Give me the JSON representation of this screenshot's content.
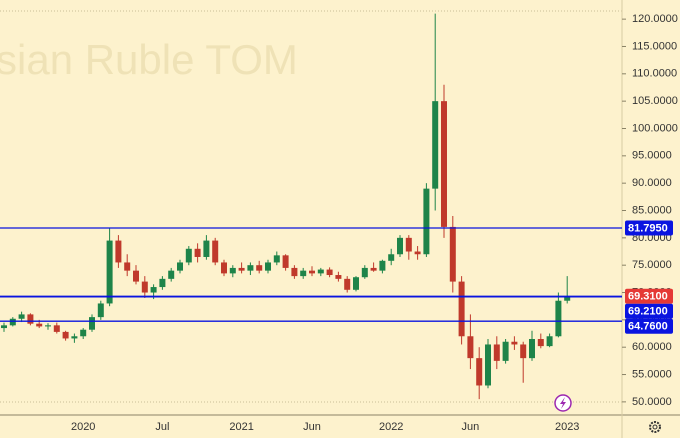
{
  "chart_data": {
    "type": "candlestick",
    "title": "sian Ruble TOM",
    "categories": [
      null,
      null,
      null,
      null,
      null,
      null,
      null,
      null,
      null,
      "2020",
      null,
      null,
      null,
      null,
      null,
      null,
      null,
      null,
      "Jul",
      null,
      null,
      null,
      null,
      null,
      null,
      null,
      null,
      "2021",
      null,
      null,
      null,
      null,
      null,
      null,
      null,
      "Jun",
      null,
      null,
      null,
      null,
      null,
      null,
      null,
      null,
      "2022",
      null,
      null,
      null,
      null,
      null,
      null,
      null,
      null,
      "Jun",
      null,
      null,
      null,
      null,
      null,
      null,
      null,
      null,
      null,
      null,
      "2023"
    ],
    "open": [
      63.5,
      64.0,
      65.2,
      66.0,
      64.3,
      63.8,
      64.0,
      62.8,
      61.6,
      62.0,
      63.2,
      65.5,
      68.0,
      79.5,
      75.5,
      74.0,
      72.0,
      70.0,
      71.0,
      72.5,
      74.0,
      75.5,
      78.0,
      76.5,
      79.5,
      75.5,
      73.5,
      74.5,
      74.0,
      75.0,
      74.0,
      75.5,
      76.8,
      74.5,
      73.0,
      74.0,
      73.5,
      74.2,
      73.2,
      72.5,
      70.5,
      72.8,
      74.5,
      74.0,
      75.8,
      77.0,
      80.0,
      77.5,
      77.0,
      89.0,
      105.0,
      82.0,
      72.0,
      62.0,
      58.0,
      53.0,
      60.5,
      57.5,
      61.0,
      60.5,
      58.0,
      61.5,
      60.2,
      62.0,
      68.5
    ],
    "high": [
      64.5,
      65.5,
      66.5,
      66.2,
      65.0,
      64.4,
      64.5,
      63.0,
      62.5,
      63.5,
      66.0,
      68.5,
      81.8,
      80.5,
      77.0,
      75.0,
      73.0,
      71.5,
      73.0,
      74.5,
      76.0,
      78.5,
      79.0,
      80.5,
      80.0,
      76.0,
      75.0,
      75.5,
      75.5,
      75.8,
      76.0,
      77.5,
      77.0,
      75.0,
      74.5,
      74.8,
      74.5,
      74.6,
      73.8,
      73.0,
      73.0,
      75.0,
      75.5,
      76.0,
      78.0,
      80.5,
      80.5,
      78.5,
      90.0,
      121.0,
      108.0,
      84.0,
      73.0,
      66.0,
      60.0,
      61.5,
      62.0,
      61.5,
      62.0,
      61.0,
      63.0,
      62.5,
      62.5,
      70.0,
      73.0
    ],
    "low": [
      62.8,
      63.8,
      64.6,
      64.0,
      63.5,
      63.2,
      62.5,
      61.2,
      60.8,
      61.5,
      62.8,
      65.0,
      67.5,
      74.5,
      73.0,
      71.5,
      69.0,
      68.8,
      70.5,
      72.0,
      73.5,
      75.0,
      75.5,
      76.0,
      75.0,
      73.0,
      72.8,
      73.5,
      73.2,
      73.5,
      73.5,
      75.0,
      74.0,
      72.5,
      72.5,
      73.0,
      73.0,
      72.8,
      72.0,
      70.0,
      70.2,
      72.5,
      73.8,
      73.5,
      75.0,
      76.5,
      76.0,
      76.0,
      76.5,
      85.0,
      80.0,
      70.0,
      60.5,
      56.0,
      50.5,
      52.5,
      56.0,
      57.0,
      59.5,
      53.5,
      57.5,
      59.8,
      60.0,
      61.8,
      68.0
    ],
    "close": [
      64.0,
      65.2,
      66.0,
      64.3,
      63.8,
      64.0,
      62.8,
      61.6,
      62.0,
      63.2,
      65.5,
      68.0,
      79.5,
      75.5,
      74.0,
      72.0,
      70.0,
      71.0,
      72.5,
      74.0,
      75.5,
      78.0,
      76.5,
      79.5,
      75.5,
      73.5,
      74.5,
      74.0,
      75.0,
      74.0,
      75.5,
      76.8,
      74.5,
      73.0,
      74.0,
      73.5,
      74.2,
      73.2,
      72.5,
      70.5,
      72.8,
      74.5,
      74.0,
      75.8,
      77.0,
      80.0,
      77.5,
      77.0,
      89.0,
      105.0,
      82.0,
      72.0,
      62.0,
      58.0,
      53.0,
      60.5,
      57.5,
      61.0,
      60.5,
      58.0,
      61.5,
      60.2,
      62.0,
      68.5,
      69.31
    ],
    "up_color": "#1e8449",
    "down_color": "#c0392b",
    "ylim": [
      47.6,
      123.5
    ],
    "yticks": [
      {
        "value": 50,
        "label": "50.0000"
      },
      {
        "value": 55,
        "label": "55.0000"
      },
      {
        "value": 60,
        "label": "60.0000"
      },
      {
        "value": 65,
        "label": "65.0000"
      },
      {
        "value": 70,
        "label": "70.0000"
      },
      {
        "value": 75,
        "label": "75.0000"
      },
      {
        "value": 80,
        "label": "80.0000"
      },
      {
        "value": 85,
        "label": "85.0000"
      },
      {
        "value": 90,
        "label": "90.0000"
      },
      {
        "value": 95,
        "label": "95.0000"
      },
      {
        "value": 100,
        "label": "100.0000"
      },
      {
        "value": 105,
        "label": "105.0000"
      },
      {
        "value": 110,
        "label": "110.0000"
      },
      {
        "value": 115,
        "label": "115.0000"
      },
      {
        "value": 120,
        "label": "120.0000"
      }
    ],
    "level_line_color": "#0a14e0",
    "levels": [
      {
        "value": 81.795,
        "label": "81.7950",
        "color": "#0a14e0"
      },
      {
        "value": 69.31,
        "label": "69.3100",
        "color": "#e53935"
      },
      {
        "value": 69.21,
        "label": "69.2100",
        "color": "#0a14e0"
      },
      {
        "value": 64.76,
        "label": "64.7600",
        "color": "#0a14e0"
      }
    ]
  }
}
